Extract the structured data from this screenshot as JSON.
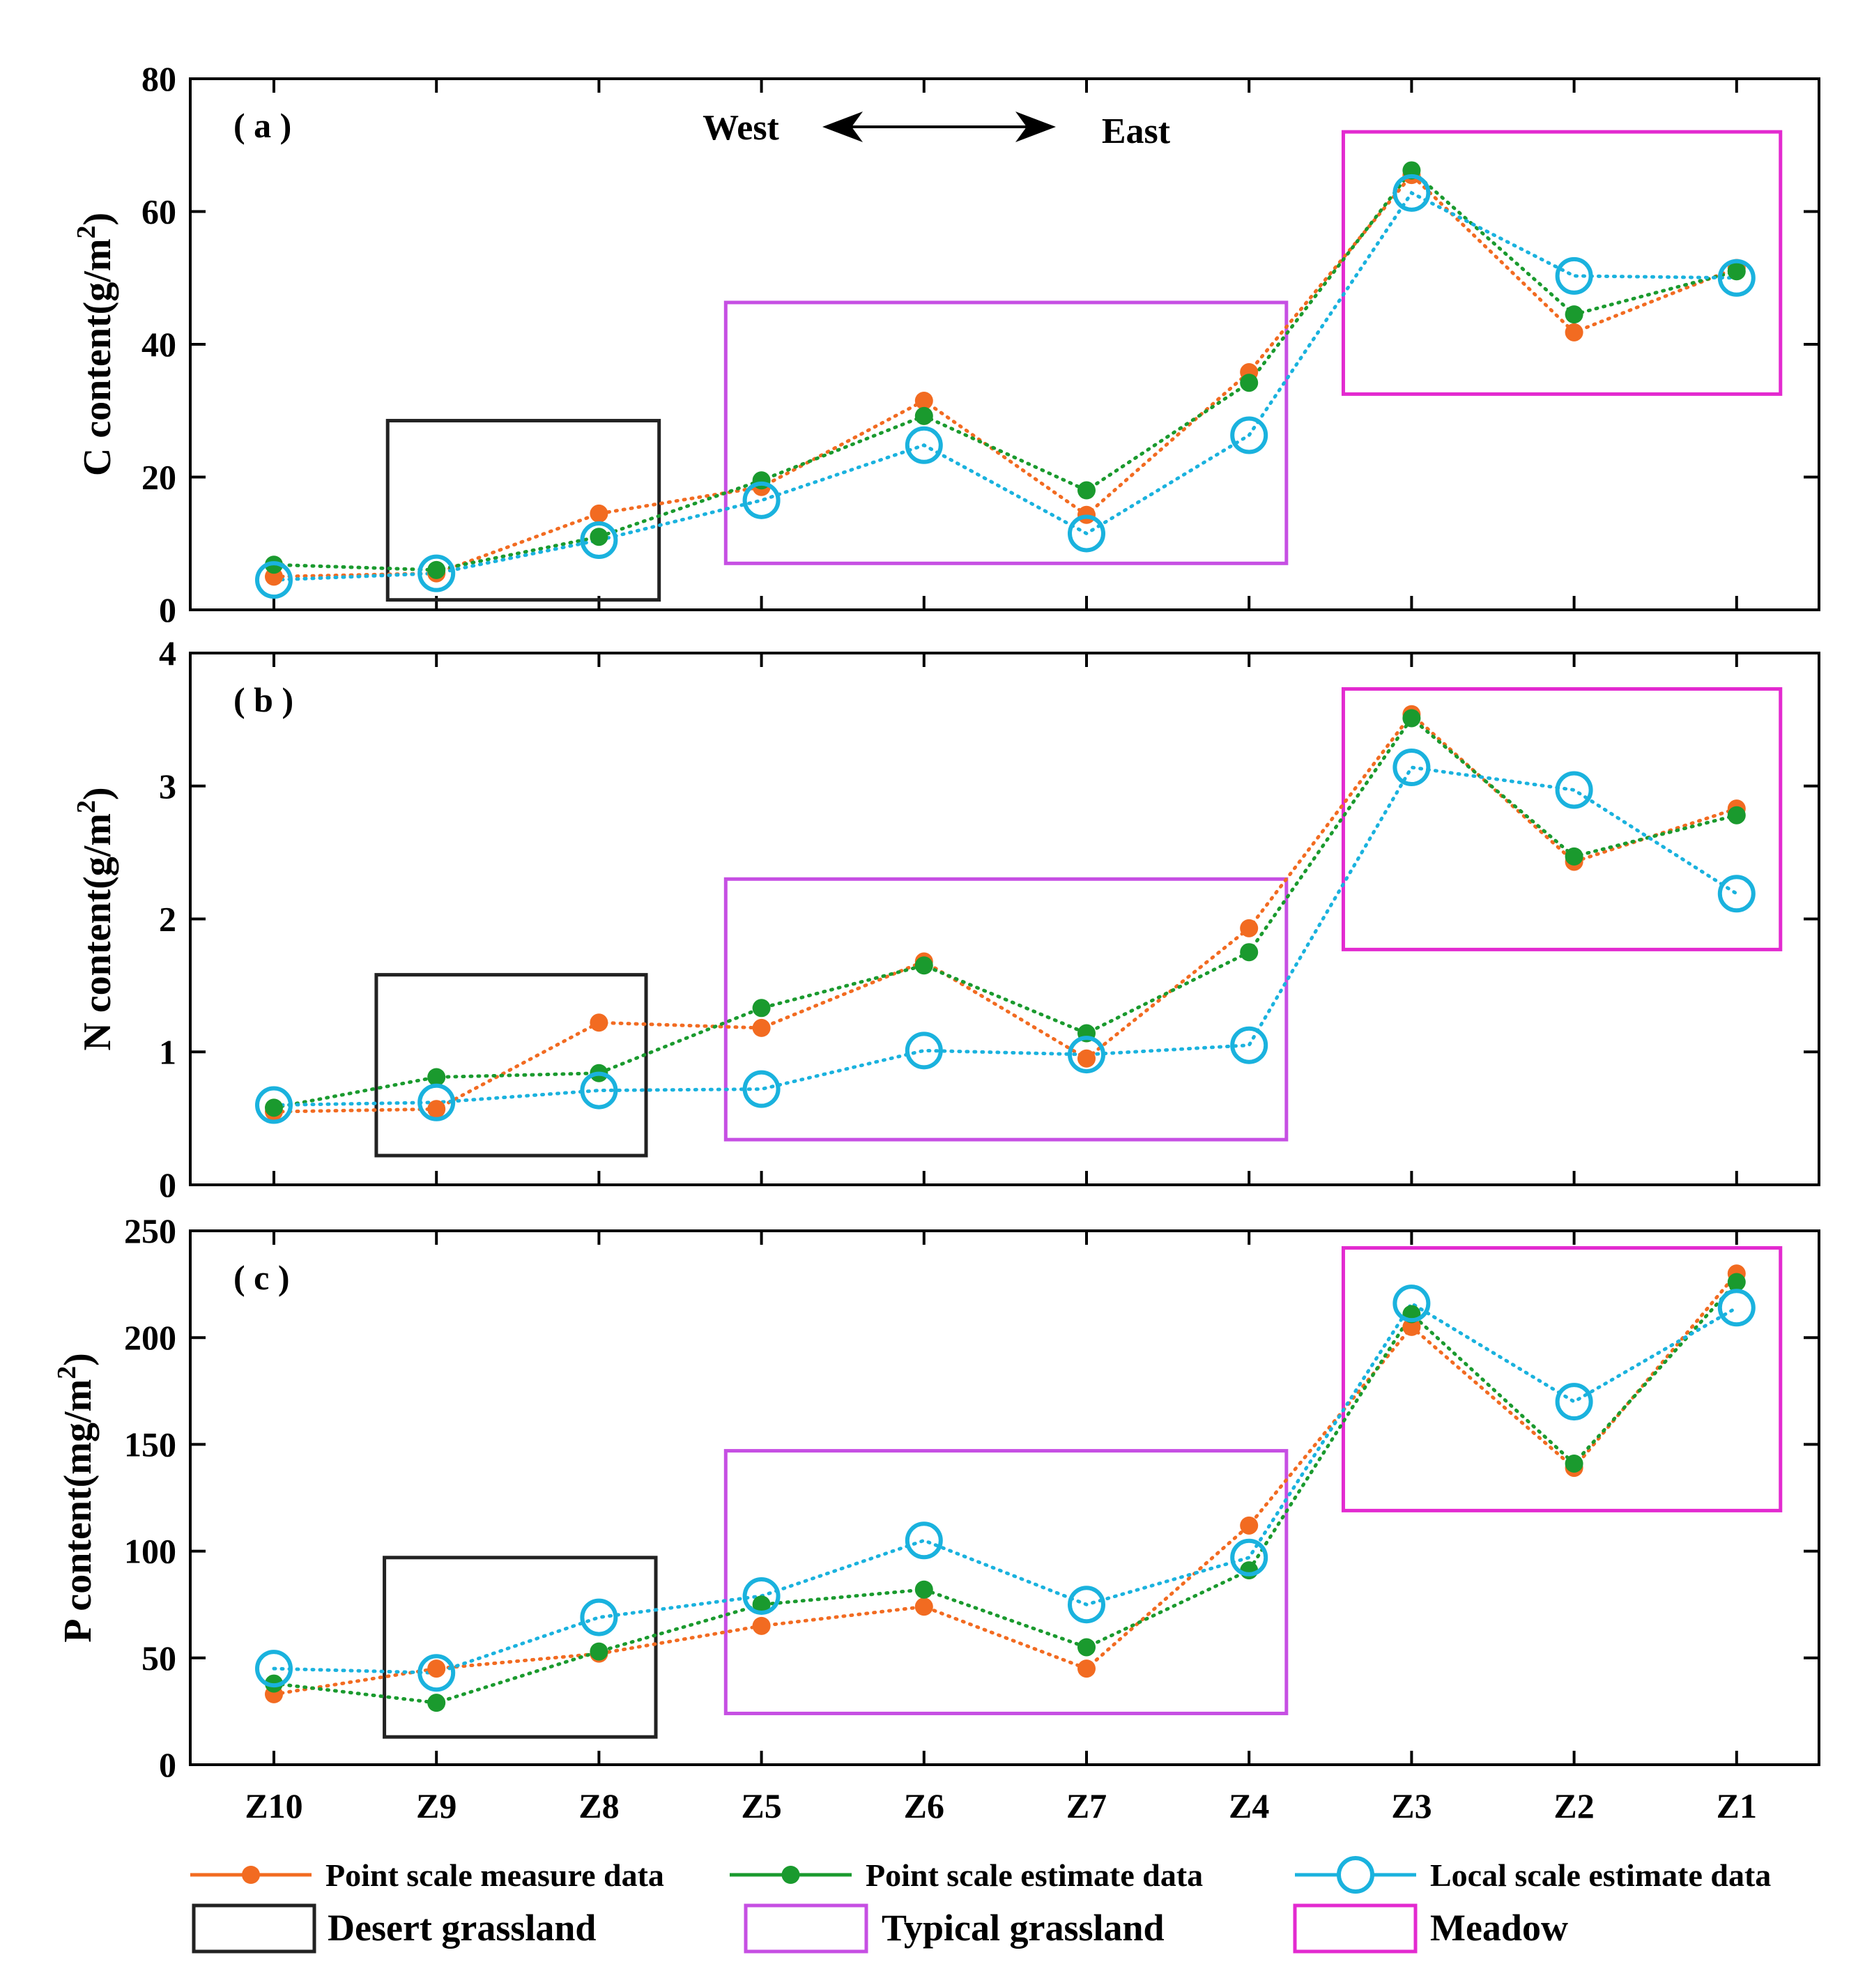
{
  "chart_data": [
    {
      "type": "line",
      "panel_label": "( a )",
      "ylabel": "C content(g/m",
      "ylabel_sup": "2",
      "ylabel_close": ")",
      "ylim": [
        0,
        80
      ],
      "yticks": [
        0,
        20,
        40,
        60,
        80
      ],
      "direction": {
        "left": "West",
        "right": "East"
      },
      "series": [
        {
          "name": "Point scale measure data",
          "color": "#f26b21",
          "marker": "filled-circle",
          "values": [
            5,
            5.5,
            14.5,
            18.5,
            31.5,
            14.3,
            35.8,
            65.5,
            41.8,
            51.5
          ]
        },
        {
          "name": "Point scale estimate data",
          "color": "#1a9a2e",
          "marker": "filled-circle",
          "values": [
            6.8,
            6,
            11,
            19.5,
            29.2,
            18,
            34.2,
            66.2,
            44.5,
            51
          ]
        },
        {
          "name": "Local scale estimate data",
          "color": "#1ab2de",
          "marker": "open-circle",
          "values": [
            4.5,
            5.5,
            10.5,
            16.5,
            24.8,
            11.5,
            26.3,
            62.8,
            50.3,
            50
          ]
        }
      ],
      "regions": [
        {
          "name": "Desert grassland",
          "x0": 0.7,
          "x1": 2.37,
          "y0": 1.5,
          "y1": 28.5
        },
        {
          "name": "Typical grassland",
          "x0": 2.78,
          "x1": 6.23,
          "y0": 7,
          "y1": 46.3
        },
        {
          "name": "Meadow",
          "x0": 6.58,
          "x1": 9.27,
          "y0": 32.5,
          "y1": 72
        }
      ]
    },
    {
      "type": "line",
      "panel_label": "( b )",
      "ylabel": "N content(g/m",
      "ylabel_sup": "2",
      "ylabel_close": ")",
      "ylim": [
        0,
        4
      ],
      "yticks": [
        0,
        1,
        2,
        3,
        4
      ],
      "series": [
        {
          "name": "Point scale measure data",
          "color": "#f26b21",
          "marker": "filled-circle",
          "values": [
            0.55,
            0.57,
            1.22,
            1.18,
            1.68,
            0.95,
            1.93,
            3.54,
            2.43,
            2.83
          ]
        },
        {
          "name": "Point scale estimate data",
          "color": "#1a9a2e",
          "marker": "filled-circle",
          "values": [
            0.58,
            0.81,
            0.84,
            1.33,
            1.65,
            1.14,
            1.75,
            3.51,
            2.47,
            2.78
          ]
        },
        {
          "name": "Local scale estimate data",
          "color": "#1ab2de",
          "marker": "open-circle",
          "values": [
            0.6,
            0.62,
            0.71,
            0.72,
            1.01,
            0.98,
            1.05,
            3.14,
            2.97,
            2.19
          ]
        }
      ],
      "regions": [
        {
          "name": "Desert grassland",
          "x0": 0.63,
          "x1": 2.29,
          "y0": 0.22,
          "y1": 1.58
        },
        {
          "name": "Typical grassland",
          "x0": 2.78,
          "x1": 6.23,
          "y0": 0.34,
          "y1": 2.3
        },
        {
          "name": "Meadow",
          "x0": 6.58,
          "x1": 9.27,
          "y0": 1.77,
          "y1": 3.73
        }
      ]
    },
    {
      "type": "line",
      "panel_label": "( c )",
      "ylabel": "P content(mg/m",
      "ylabel_sup": "2",
      "ylabel_close": ")",
      "ylim": [
        0,
        250
      ],
      "yticks": [
        0,
        50,
        100,
        150,
        200,
        250
      ],
      "series": [
        {
          "name": "Point scale measure data",
          "color": "#f26b21",
          "marker": "filled-circle",
          "values": [
            33,
            45,
            52,
            65,
            74,
            45,
            112,
            205,
            139,
            230
          ]
        },
        {
          "name": "Point scale estimate data",
          "color": "#1a9a2e",
          "marker": "filled-circle",
          "values": [
            38,
            29,
            53,
            75,
            82,
            55,
            91,
            211,
            141,
            226
          ]
        },
        {
          "name": "Local scale estimate data",
          "color": "#1ab2de",
          "marker": "open-circle",
          "values": [
            45,
            43,
            69,
            79,
            105,
            75,
            97,
            216,
            170,
            214
          ]
        }
      ],
      "regions": [
        {
          "name": "Desert grassland",
          "x0": 0.68,
          "x1": 2.35,
          "y0": 13,
          "y1": 97
        },
        {
          "name": "Typical grassland",
          "x0": 2.78,
          "x1": 6.23,
          "y0": 24,
          "y1": 147
        },
        {
          "name": "Meadow",
          "x0": 6.58,
          "x1": 9.27,
          "y0": 119,
          "y1": 242
        }
      ]
    }
  ],
  "categories": [
    "Z10",
    "Z9",
    "Z8",
    "Z5",
    "Z6",
    "Z7",
    "Z4",
    "Z3",
    "Z2",
    "Z1"
  ],
  "legend": {
    "series": [
      {
        "label": "Point scale measure data",
        "color": "#f26b21",
        "marker": "filled-circle"
      },
      {
        "label": "Point scale estimate data",
        "color": "#1a9a2e",
        "marker": "filled-circle"
      },
      {
        "label": "Local scale estimate data",
        "color": "#1ab2de",
        "marker": "open-circle"
      }
    ],
    "regions": [
      {
        "label": "Desert grassland",
        "color": "#222222"
      },
      {
        "label": "Typical grassland",
        "color": "#c64fe3"
      },
      {
        "label": "Meadow",
        "color": "#e32ad0"
      }
    ]
  }
}
